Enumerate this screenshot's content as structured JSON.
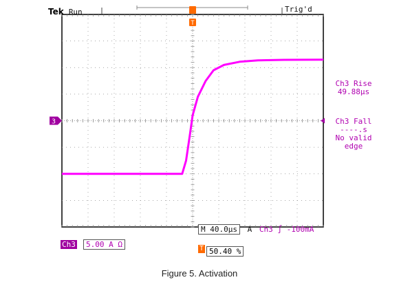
{
  "header": {
    "brand": "Tek",
    "acq_state": "Run",
    "trigger_status": "Trig'd"
  },
  "measurements": {
    "rise_label": "Ch3 Rise",
    "rise_value": "49.88µs",
    "fall_label": "Ch3 Fall",
    "fall_value": "----.s",
    "fall_note_1": "No valid",
    "fall_note_2": "edge"
  },
  "bottom": {
    "timebase": "M 40.0µs",
    "trigger_label": "A",
    "trigger_setting": "Ch3 ∫ -100mA",
    "channel": "Ch3",
    "channel_scale": "5.00 A Ω",
    "trigger_position": "50.40 %",
    "ground_marker": "3",
    "trigger_marker": "T"
  },
  "caption": "Figure 5. Activation",
  "colors": {
    "trace": "#ff00ff",
    "channel": "#a000a0",
    "trigger": "#ff6a00",
    "grid": "#888888",
    "frame": "#000000"
  },
  "chart_data": {
    "type": "line",
    "title": "",
    "xlabel": "",
    "ylabel": "",
    "x_unit_per_div": "40.0µs",
    "y_unit_per_div": "5.00 A",
    "x_divisions": 10,
    "y_divisions": 8,
    "xlim_div": [
      0,
      10
    ],
    "ylim_div": [
      -4,
      4
    ],
    "grid": true,
    "series": [
      {
        "points_div": [
          [
            0.0,
            -2.0
          ],
          [
            4.6,
            -2.0
          ],
          [
            4.75,
            -1.5
          ],
          [
            4.9,
            -0.5
          ],
          [
            5.0,
            0.2
          ],
          [
            5.2,
            0.9
          ],
          [
            5.5,
            1.5
          ],
          [
            5.8,
            1.9
          ],
          [
            6.2,
            2.1
          ],
          [
            6.8,
            2.22
          ],
          [
            7.5,
            2.27
          ],
          [
            8.5,
            2.29
          ],
          [
            10.0,
            2.3
          ]
        ]
      }
    ]
  }
}
